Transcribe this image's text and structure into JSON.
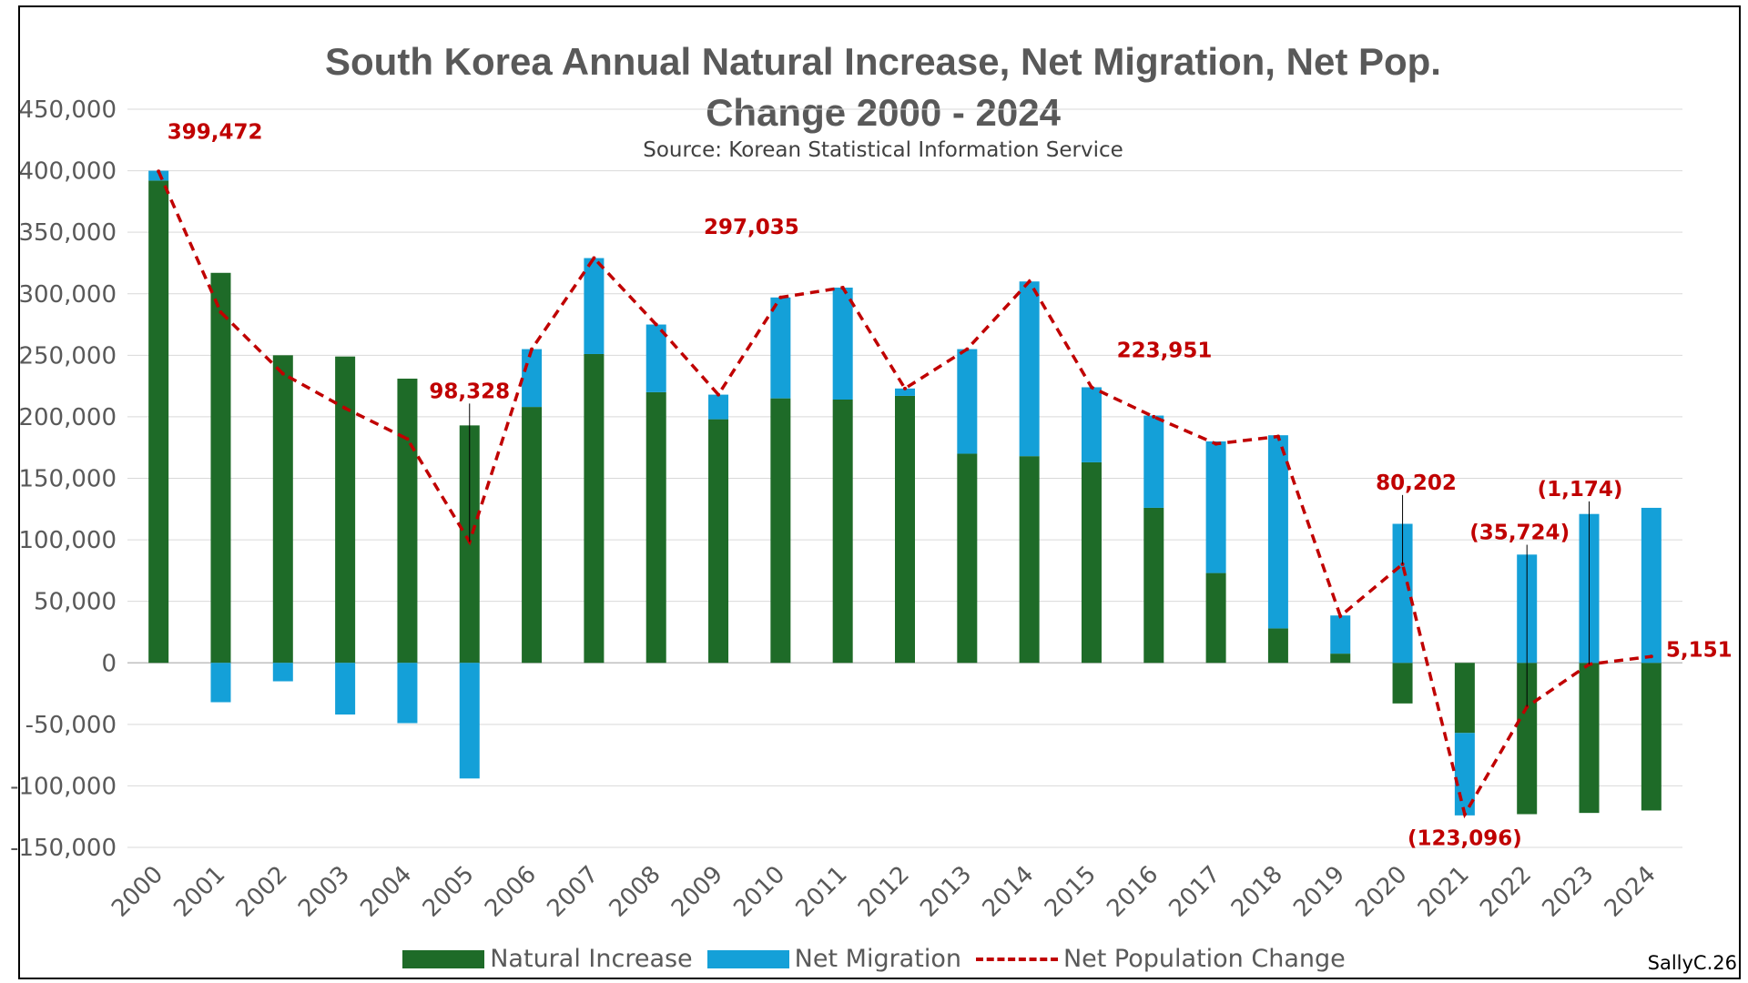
{
  "chart_data": {
    "type": "bar",
    "title_line1": "South Korea Annual Natural Increase, Net Migration, Net Pop.",
    "title_line2": "Change 2000 - 2024",
    "subtitle": "Source: Korean Statistical Information Service",
    "credit": "SallyC.26",
    "categories": [
      "2000",
      "2001",
      "2002",
      "2003",
      "2004",
      "2005",
      "2006",
      "2007",
      "2008",
      "2009",
      "2010",
      "2011",
      "2012",
      "2013",
      "2014",
      "2015",
      "2016",
      "2017",
      "2018",
      "2019",
      "2020",
      "2021",
      "2022",
      "2023",
      "2024"
    ],
    "ylim": [
      -150000,
      450000
    ],
    "yticks": [
      -150000,
      -100000,
      -50000,
      0,
      50000,
      100000,
      150000,
      200000,
      250000,
      300000,
      350000,
      400000,
      450000
    ],
    "ytick_labels": [
      "-150,000",
      "-100,000",
      "-50,000",
      "0",
      "50,000",
      "100,000",
      "150,000",
      "200,000",
      "250,000",
      "300,000",
      "350,000",
      "400,000",
      "450,000"
    ],
    "series": [
      {
        "name": "Natural Increase",
        "color": "#1e6b28",
        "values": [
          392000,
          317000,
          250000,
          249000,
          231000,
          193000,
          208000,
          251000,
          220000,
          198000,
          215000,
          214000,
          217000,
          170000,
          168000,
          163000,
          126000,
          73000,
          28000,
          7500,
          -33000,
          -57000,
          -123000,
          -122000,
          -120000
        ]
      },
      {
        "name": "Net Migration",
        "color": "#14a0d8",
        "values": [
          8000,
          -32000,
          -15000,
          -42000,
          -49000,
          -94000,
          47000,
          78000,
          55000,
          20000,
          82000,
          91000,
          6000,
          85000,
          142000,
          61000,
          75000,
          107000,
          157000,
          31000,
          113000,
          -67000,
          88000,
          121000,
          126000
        ]
      },
      {
        "name": "Net Population Change",
        "color": "#c00000",
        "values": [
          399472,
          285000,
          235000,
          207000,
          182000,
          98328,
          255000,
          329000,
          275000,
          218000,
          297035,
          305000,
          223000,
          255000,
          310000,
          223951,
          200000,
          178000,
          184000,
          38000,
          80202,
          -123096,
          -35724,
          -1174,
          5151
        ]
      }
    ],
    "annotations": [
      {
        "label": "399,472",
        "index": 0
      },
      {
        "label": "98,328",
        "index": 5
      },
      {
        "label": "297,035",
        "index": 10
      },
      {
        "label": "223,951",
        "index": 15
      },
      {
        "label": "80,202",
        "index": 20
      },
      {
        "label": "(123,096)",
        "index": 21
      },
      {
        "label": "(35,724)",
        "index": 22
      },
      {
        "label": "(1,174)",
        "index": 23
      },
      {
        "label": "5,151",
        "index": 24
      }
    ],
    "legend": [
      "Natural Increase",
      "Net Migration",
      "Net Population Change"
    ],
    "legend_position": "bottom",
    "grid": true
  }
}
